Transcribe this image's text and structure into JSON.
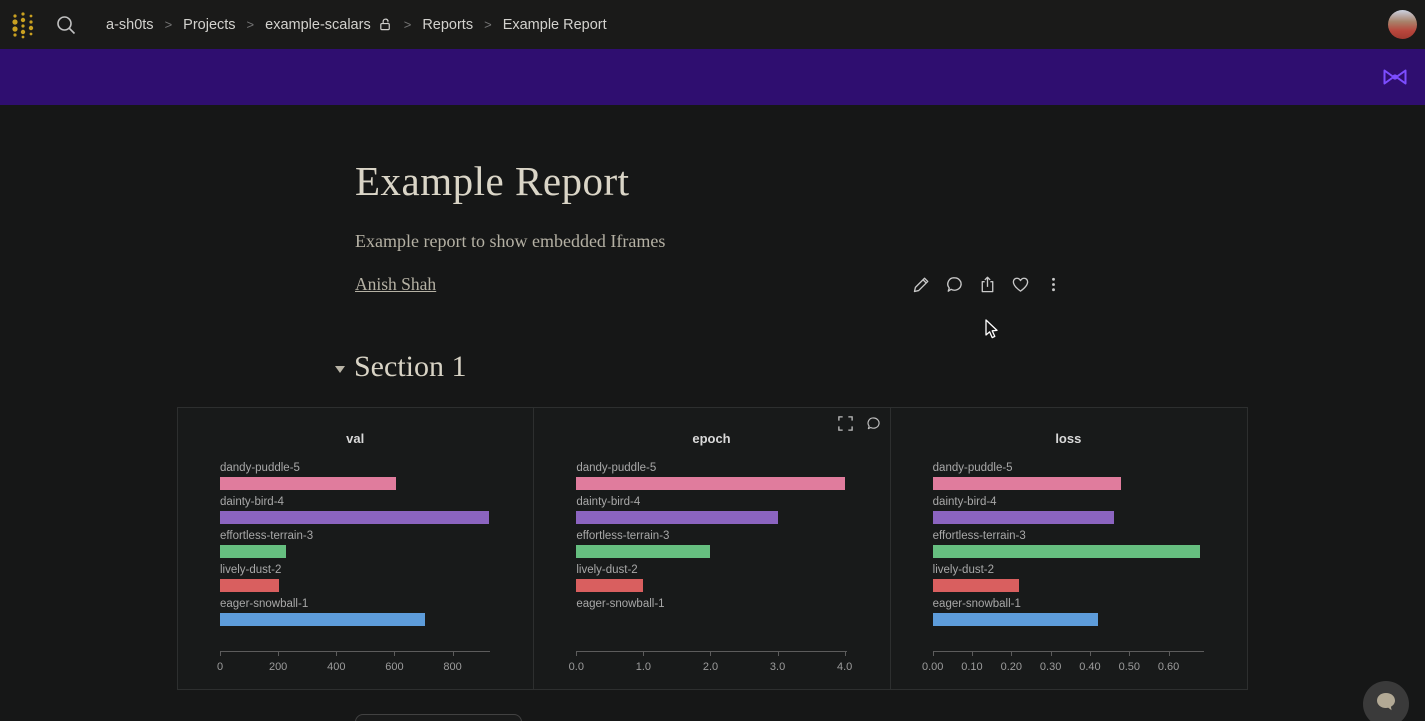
{
  "topbar": {
    "breadcrumb": [
      "a-sh0ts",
      "Projects",
      "example-scalars",
      "Reports",
      "Example Report"
    ],
    "breadcrumb_separator": ">",
    "lock_after_index": 2
  },
  "banner": {
    "background_color": "#2f0e70",
    "icon_color": "#7c4dff"
  },
  "report": {
    "title": "Example Report",
    "subtitle": "Example report to show embedded Iframes",
    "author": "Anish Shah"
  },
  "actions": [
    "edit",
    "comment",
    "share",
    "like",
    "more"
  ],
  "section": {
    "title": "Section 1"
  },
  "runs": [
    {
      "name": "dandy-puddle-5",
      "color": "#e07c9d"
    },
    {
      "name": "dainty-bird-4",
      "color": "#8b64c0"
    },
    {
      "name": "effortless-terrain-3",
      "color": "#66bf80"
    },
    {
      "name": "lively-dust-2",
      "color": "#d95f5f"
    },
    {
      "name": "eager-snowball-1",
      "color": "#5d9cda"
    }
  ],
  "chart_data": [
    {
      "type": "bar",
      "orientation": "horizontal",
      "title": "val",
      "categories": [
        "dandy-puddle-5",
        "dainty-bird-4",
        "effortless-terrain-3",
        "lively-dust-2",
        "eager-snowball-1"
      ],
      "values": [
        605,
        925,
        228,
        203,
        705
      ],
      "xlim": [
        0,
        930
      ],
      "grid": false,
      "legend": false,
      "xticks": [
        {
          "value": 0,
          "label": "0"
        },
        {
          "value": 200,
          "label": "200"
        },
        {
          "value": 400,
          "label": "400"
        },
        {
          "value": 600,
          "label": "600"
        },
        {
          "value": 800,
          "label": "800"
        }
      ]
    },
    {
      "type": "bar",
      "orientation": "horizontal",
      "title": "epoch",
      "categories": [
        "dandy-puddle-5",
        "dainty-bird-4",
        "effortless-terrain-3",
        "lively-dust-2",
        "eager-snowball-1"
      ],
      "values": [
        4.0,
        3.0,
        2.0,
        1.0,
        0.0
      ],
      "xlim": [
        0,
        4.03
      ],
      "grid": false,
      "legend": false,
      "hover_icons": [
        "fullscreen",
        "comment"
      ],
      "xticks": [
        {
          "value": 0,
          "label": "0.0"
        },
        {
          "value": 1,
          "label": "1.0"
        },
        {
          "value": 2,
          "label": "2.0"
        },
        {
          "value": 3,
          "label": "3.0"
        },
        {
          "value": 4,
          "label": "4.0"
        }
      ]
    },
    {
      "type": "bar",
      "orientation": "horizontal",
      "title": "loss",
      "categories": [
        "dandy-puddle-5",
        "dainty-bird-4",
        "effortless-terrain-3",
        "lively-dust-2",
        "eager-snowball-1"
      ],
      "values": [
        0.48,
        0.46,
        0.68,
        0.22,
        0.42
      ],
      "xlim": [
        0,
        0.69
      ],
      "grid": false,
      "legend": false,
      "xticks": [
        {
          "value": 0.0,
          "label": "0.00"
        },
        {
          "value": 0.1,
          "label": "0.10"
        },
        {
          "value": 0.2,
          "label": "0.20"
        },
        {
          "value": 0.3,
          "label": "0.30"
        },
        {
          "value": 0.4,
          "label": "0.40"
        },
        {
          "value": 0.5,
          "label": "0.50"
        },
        {
          "value": 0.6,
          "label": "0.60"
        }
      ]
    }
  ]
}
